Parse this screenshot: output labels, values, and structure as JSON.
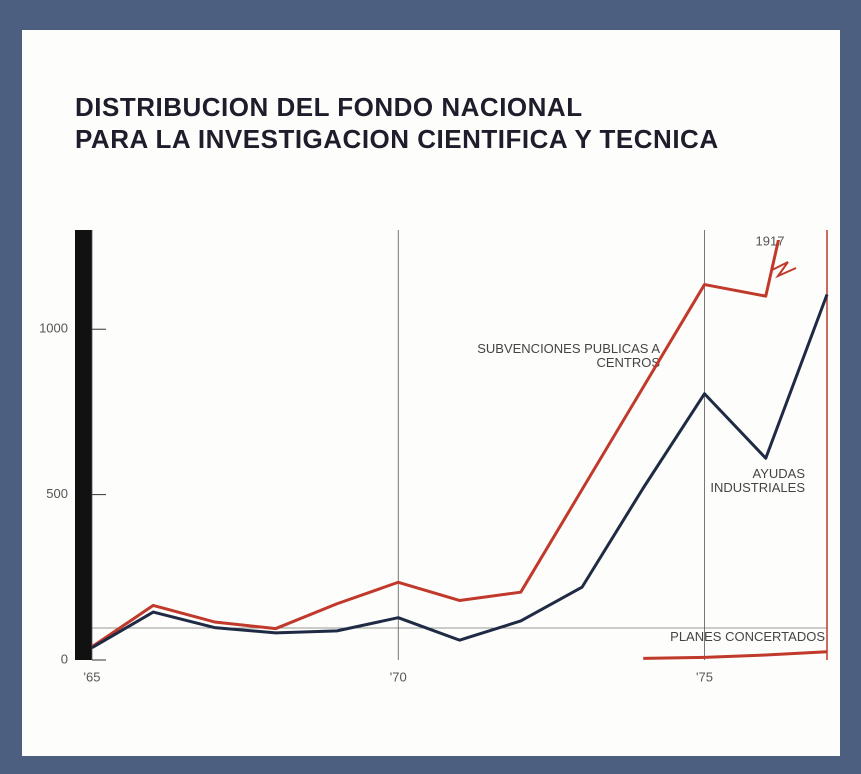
{
  "chart_data": {
    "type": "line",
    "title": [
      "DISTRIBUCION DEL FONDO NACIONAL",
      "PARA LA INVESTIGACION CIENTIFICA Y TECNICA"
    ],
    "x": [
      1965,
      1966,
      1967,
      1968,
      1969,
      1970,
      1971,
      1972,
      1973,
      1974,
      1975,
      1976,
      1977
    ],
    "series": [
      {
        "name": "SUBVENCIONES PUBLICAS A CENTROS",
        "color": "#c0392b",
        "values": [
          40,
          165,
          115,
          95,
          170,
          235,
          180,
          205,
          515,
          825,
          1135,
          1100,
          1917
        ]
      },
      {
        "name": "AYUDAS INDUSTRIALES",
        "color": "#1f2a44",
        "values": [
          37,
          145,
          98,
          82,
          88,
          128,
          60,
          118,
          220,
          520,
          805,
          610,
          1105
        ]
      },
      {
        "name": "PLANES CONCERTADOS",
        "color": "#c0392b",
        "values": [
          null,
          null,
          null,
          null,
          null,
          null,
          null,
          null,
          null,
          5,
          8,
          15,
          25
        ]
      }
    ],
    "xlim": [
      1965,
      1977
    ],
    "xticks": [
      {
        "value": 1965,
        "label": "'65"
      },
      {
        "value": 1970,
        "label": "'70"
      },
      {
        "value": 1975,
        "label": "'75"
      }
    ],
    "ylim": [
      0,
      1300
    ],
    "yticks": [
      0,
      500,
      1000
    ]
  }
}
